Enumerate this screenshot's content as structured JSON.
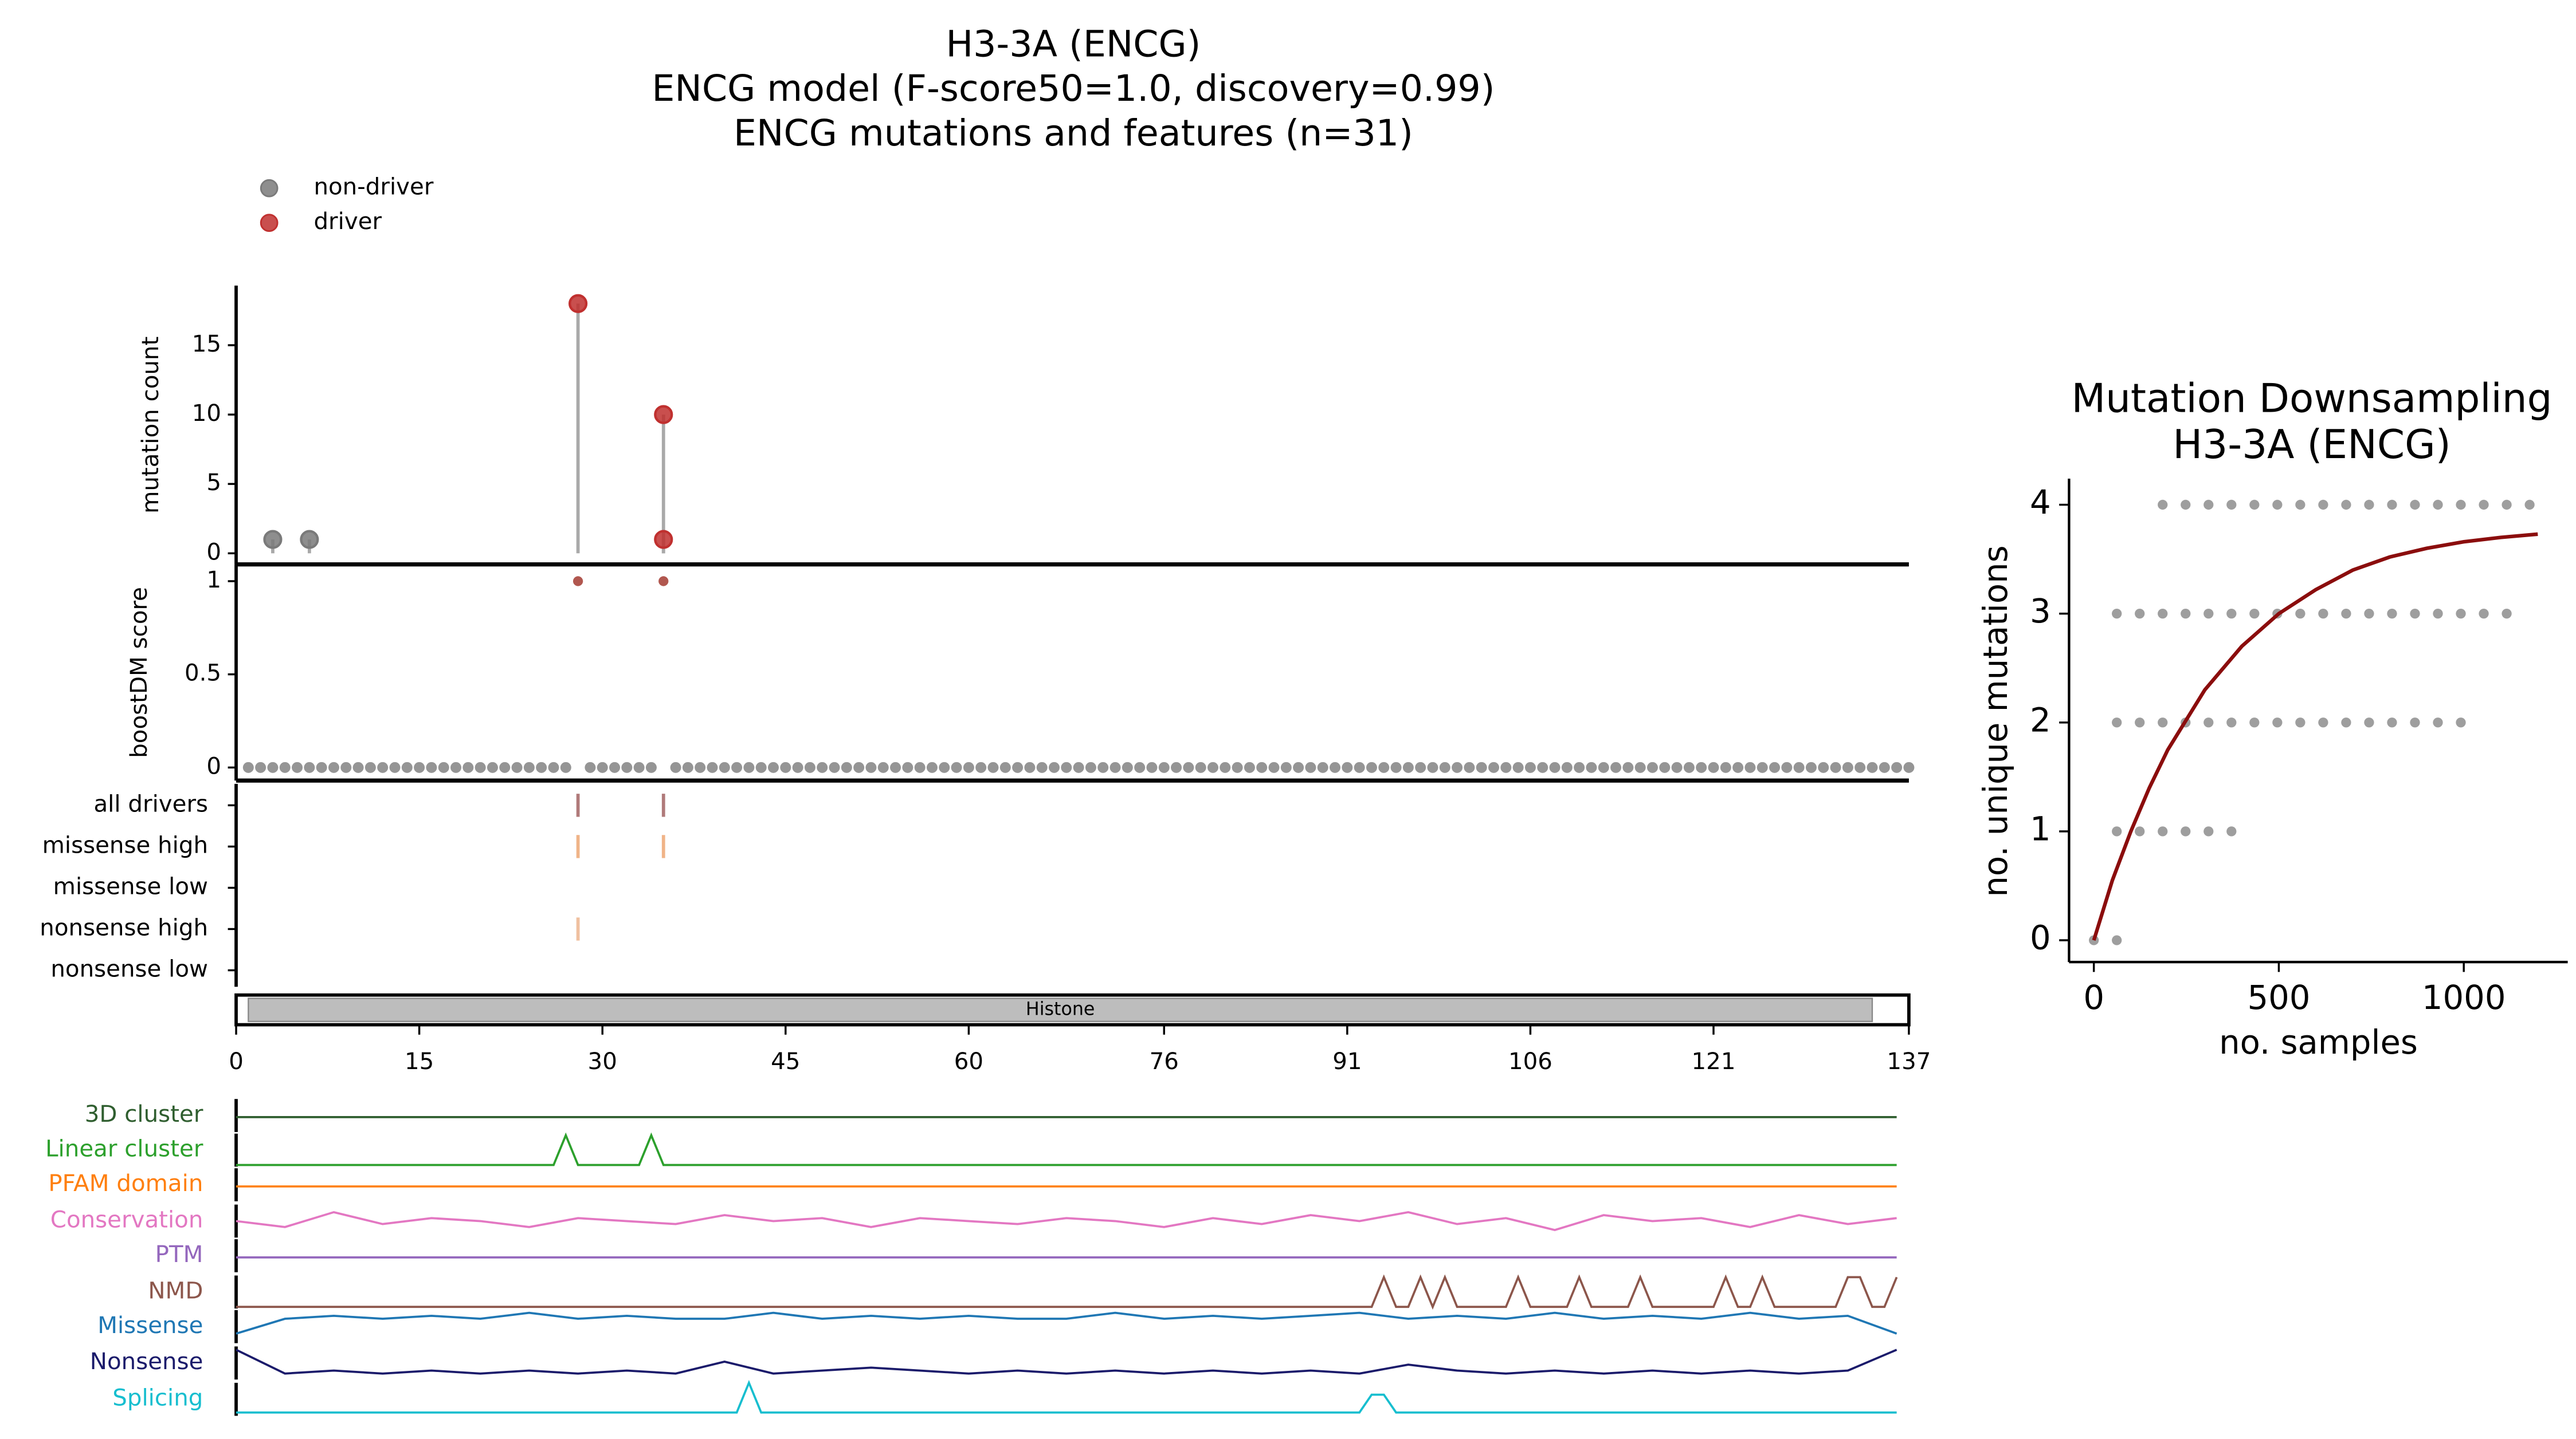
{
  "chart_data": [
    {
      "type": "lollipop",
      "title": [
        "H3-3A (ENCG)",
        "ENCG model (F-score50=1.0, discovery=0.99)",
        "ENCG mutations and features (n=31)"
      ],
      "ylabel": "mutation count",
      "ylim": [
        -0.8,
        19.3
      ],
      "yticks": [
        0,
        5,
        10,
        15
      ],
      "series": [
        {
          "name": "non-driver",
          "color": "#7a7a7a",
          "x": [
            3,
            6
          ],
          "values": [
            1,
            1
          ]
        },
        {
          "name": "driver",
          "color": "#c0302f",
          "x": [
            28,
            35,
            35
          ],
          "values": [
            18,
            10,
            1
          ]
        }
      ]
    },
    {
      "type": "strip",
      "ylabel": "boostDM score",
      "ylim": [
        -0.07,
        1.09
      ],
      "yticks": [
        0,
        0.5,
        1
      ],
      "series": [
        {
          "color": "#8a8a8a",
          "x": [
            1,
            2,
            3,
            4,
            5,
            6,
            7,
            8,
            9,
            10,
            11,
            12,
            13,
            14,
            15,
            16,
            17,
            18,
            19,
            20,
            21,
            22,
            23,
            24,
            25,
            26,
            27,
            29,
            30,
            31,
            32,
            33,
            34,
            36,
            37,
            38,
            39,
            40,
            41,
            42,
            43,
            44,
            45,
            46,
            47,
            48,
            49,
            50,
            51,
            52,
            53,
            54,
            55,
            56,
            57,
            58,
            59,
            60,
            61,
            62,
            63,
            64,
            65,
            66,
            67,
            68,
            69,
            70,
            71,
            72,
            73,
            74,
            75,
            76,
            77,
            78,
            79,
            80,
            81,
            82,
            83,
            84,
            85,
            86,
            87,
            88,
            89,
            90,
            91,
            92,
            93,
            94,
            95,
            96,
            97,
            98,
            99,
            100,
            101,
            102,
            103,
            104,
            105,
            106,
            107,
            108,
            109,
            110,
            111,
            112,
            113,
            114,
            115,
            116,
            117,
            118,
            119,
            120,
            121,
            122,
            123,
            124,
            125,
            126,
            127,
            128,
            129,
            130,
            131,
            132,
            133,
            134,
            135,
            136,
            137
          ],
          "values": [
            0,
            0,
            0,
            0,
            0,
            0,
            0,
            0,
            0,
            0,
            0,
            0,
            0,
            0,
            0,
            0,
            0,
            0,
            0,
            0,
            0,
            0,
            0,
            0,
            0,
            0,
            0,
            0,
            0,
            0,
            0,
            0,
            0,
            0,
            0,
            0,
            0,
            0,
            0,
            0,
            0,
            0,
            0,
            0,
            0,
            0,
            0,
            0,
            0,
            0,
            0,
            0,
            0,
            0,
            0,
            0,
            0,
            0,
            0,
            0,
            0,
            0,
            0,
            0,
            0,
            0,
            0,
            0,
            0,
            0,
            0,
            0,
            0,
            0,
            0,
            0,
            0,
            0,
            0,
            0,
            0,
            0,
            0,
            0,
            0,
            0,
            0,
            0,
            0,
            0,
            0,
            0,
            0,
            0,
            0,
            0,
            0,
            0,
            0,
            0,
            0,
            0,
            0,
            0,
            0,
            0,
            0,
            0,
            0,
            0,
            0,
            0,
            0,
            0,
            0,
            0,
            0,
            0,
            0,
            0,
            0,
            0,
            0,
            0,
            0,
            0,
            0,
            0,
            0,
            0,
            0,
            0,
            0,
            0,
            0
          ]
        },
        {
          "color": "#a8453c",
          "x": [
            28,
            35
          ],
          "values": [
            1,
            1
          ]
        }
      ]
    },
    {
      "type": "track",
      "xlim": [
        0,
        137
      ],
      "xticks": [
        0,
        15,
        30,
        45,
        60,
        76,
        91,
        106,
        121,
        137
      ],
      "tracks": [
        {
          "name": "all drivers",
          "color": "#b07a7a",
          "x": [
            28,
            35
          ]
        },
        {
          "name": "missense high",
          "color": "#f0b488",
          "x": [
            28,
            35
          ]
        },
        {
          "name": "missense low",
          "color": "#f3c9a0",
          "x": []
        },
        {
          "name": "nonsense high",
          "color": "#f0c0a0",
          "x": [
            28
          ]
        },
        {
          "name": "nonsense low",
          "color": "#e0b0b0",
          "x": []
        }
      ],
      "domains": [
        {
          "name": "Histone",
          "start": 1,
          "end": 134,
          "color": "#bdbdbd"
        }
      ]
    },
    {
      "type": "feature",
      "series": [
        {
          "name": "3D cluster",
          "color": "#2f5e2f",
          "x": [
            0,
            136
          ],
          "values": [
            0,
            0
          ]
        },
        {
          "name": "Linear cluster",
          "color": "#2ca02c",
          "x": [
            0,
            26,
            27,
            28,
            33,
            34,
            35,
            136
          ],
          "values": [
            0,
            0,
            1,
            0,
            0,
            1,
            0,
            0
          ]
        },
        {
          "name": "PFAM domain",
          "color": "#ff7f0e",
          "x": [
            0,
            136
          ],
          "values": [
            0,
            0
          ]
        },
        {
          "name": "Conservation",
          "color": "#e377c2",
          "x": [
            0,
            4,
            8,
            12,
            16,
            20,
            24,
            28,
            32,
            36,
            40,
            44,
            48,
            52,
            56,
            60,
            64,
            68,
            72,
            76,
            80,
            84,
            88,
            92,
            96,
            100,
            104,
            108,
            112,
            116,
            120,
            124,
            128,
            132,
            136
          ],
          "values": [
            0.5,
            0.3,
            0.8,
            0.4,
            0.6,
            0.5,
            0.3,
            0.6,
            0.5,
            0.4,
            0.7,
            0.5,
            0.6,
            0.3,
            0.6,
            0.5,
            0.4,
            0.6,
            0.5,
            0.3,
            0.6,
            0.4,
            0.7,
            0.5,
            0.8,
            0.4,
            0.6,
            0.2,
            0.7,
            0.5,
            0.6,
            0.3,
            0.7,
            0.4,
            0.6
          ]
        },
        {
          "name": "PTM",
          "color": "#9467bd",
          "x": [
            0,
            136
          ],
          "values": [
            0,
            0
          ]
        },
        {
          "name": "NMD",
          "color": "#8c564b",
          "x": [
            0,
            93,
            94,
            95,
            96,
            97,
            98,
            99,
            100,
            104,
            105,
            106,
            109,
            110,
            111,
            114,
            115,
            116,
            121,
            122,
            123,
            124,
            125,
            126,
            131,
            132,
            133,
            134,
            135,
            136
          ],
          "values": [
            0,
            0,
            1,
            0,
            0,
            1,
            0,
            1,
            0,
            0,
            1,
            0,
            0,
            1,
            0,
            0,
            1,
            0,
            0,
            1,
            0,
            0,
            1,
            0,
            0,
            1,
            1,
            0,
            0,
            1
          ]
        },
        {
          "name": "Missense",
          "color": "#1f77b4",
          "x": [
            0,
            4,
            8,
            12,
            16,
            20,
            24,
            28,
            32,
            36,
            40,
            44,
            48,
            52,
            56,
            60,
            64,
            68,
            72,
            76,
            80,
            84,
            88,
            92,
            96,
            100,
            104,
            108,
            112,
            116,
            120,
            124,
            128,
            132,
            136
          ],
          "values": [
            0.1,
            0.6,
            0.7,
            0.6,
            0.7,
            0.6,
            0.8,
            0.6,
            0.7,
            0.6,
            0.6,
            0.8,
            0.6,
            0.7,
            0.6,
            0.7,
            0.6,
            0.6,
            0.8,
            0.6,
            0.7,
            0.6,
            0.7,
            0.8,
            0.6,
            0.7,
            0.6,
            0.8,
            0.6,
            0.7,
            0.6,
            0.8,
            0.6,
            0.7,
            0.1
          ]
        },
        {
          "name": "Nonsense",
          "color": "#1b1b6b",
          "x": [
            0,
            4,
            8,
            12,
            16,
            20,
            24,
            28,
            32,
            36,
            40,
            44,
            48,
            52,
            56,
            60,
            64,
            68,
            72,
            76,
            80,
            84,
            88,
            92,
            96,
            100,
            104,
            108,
            112,
            116,
            120,
            124,
            128,
            132,
            136
          ],
          "values": [
            1,
            0.2,
            0.3,
            0.2,
            0.3,
            0.2,
            0.3,
            0.2,
            0.3,
            0.2,
            0.6,
            0.2,
            0.3,
            0.4,
            0.3,
            0.2,
            0.3,
            0.2,
            0.3,
            0.2,
            0.3,
            0.2,
            0.3,
            0.2,
            0.5,
            0.3,
            0.2,
            0.3,
            0.2,
            0.3,
            0.2,
            0.3,
            0.2,
            0.3,
            1
          ]
        },
        {
          "name": "Splicing",
          "color": "#17becf",
          "x": [
            0,
            41,
            42,
            43,
            92,
            93,
            94,
            95,
            136
          ],
          "values": [
            0,
            0,
            1,
            0,
            0,
            0.6,
            0.6,
            0,
            0
          ]
        }
      ]
    },
    {
      "type": "scatter",
      "title": [
        "Mutation Downsampling",
        "H3-3A (ENCG)"
      ],
      "xlabel": "no. samples",
      "ylabel": "no. unique mutations",
      "xlim": [
        -67,
        1281
      ],
      "ylim": [
        -0.2,
        4.24
      ],
      "xticks": [
        0,
        500,
        1000
      ],
      "yticks": [
        0,
        1,
        2,
        3,
        4
      ],
      "series": [
        {
          "color": "#7d7d7d",
          "x": [
            0,
            62,
            62,
            124,
            186,
            248,
            310,
            372,
            62,
            124,
            186,
            248,
            310,
            372,
            434,
            496,
            558,
            620,
            682,
            744,
            806,
            868,
            930,
            992,
            62,
            124,
            186,
            248,
            310,
            372,
            434,
            496,
            558,
            620,
            682,
            744,
            806,
            868,
            930,
            992,
            1054,
            1116,
            186,
            248,
            310,
            372,
            434,
            496,
            558,
            620,
            682,
            744,
            806,
            868,
            930,
            992,
            1054,
            1116,
            1178
          ],
          "values": [
            0,
            0,
            1,
            1,
            1,
            1,
            1,
            1,
            2,
            2,
            2,
            2,
            2,
            2,
            2,
            2,
            2,
            2,
            2,
            2,
            2,
            2,
            2,
            2,
            3,
            3,
            3,
            3,
            3,
            3,
            3,
            3,
            3,
            3,
            3,
            3,
            3,
            3,
            3,
            3,
            3,
            3,
            4,
            4,
            4,
            4,
            4,
            4,
            4,
            4,
            4,
            4,
            4,
            4,
            4,
            4,
            4,
            4,
            4
          ]
        },
        {
          "type": "line",
          "color": "#8b0d0d",
          "x": [
            0,
            50,
            100,
            150,
            200,
            300,
            400,
            500,
            600,
            700,
            800,
            900,
            1000,
            1100,
            1200
          ],
          "values": [
            0,
            0.55,
            1.0,
            1.4,
            1.75,
            2.3,
            2.7,
            3.0,
            3.22,
            3.4,
            3.52,
            3.6,
            3.66,
            3.7,
            3.73
          ]
        }
      ]
    }
  ]
}
